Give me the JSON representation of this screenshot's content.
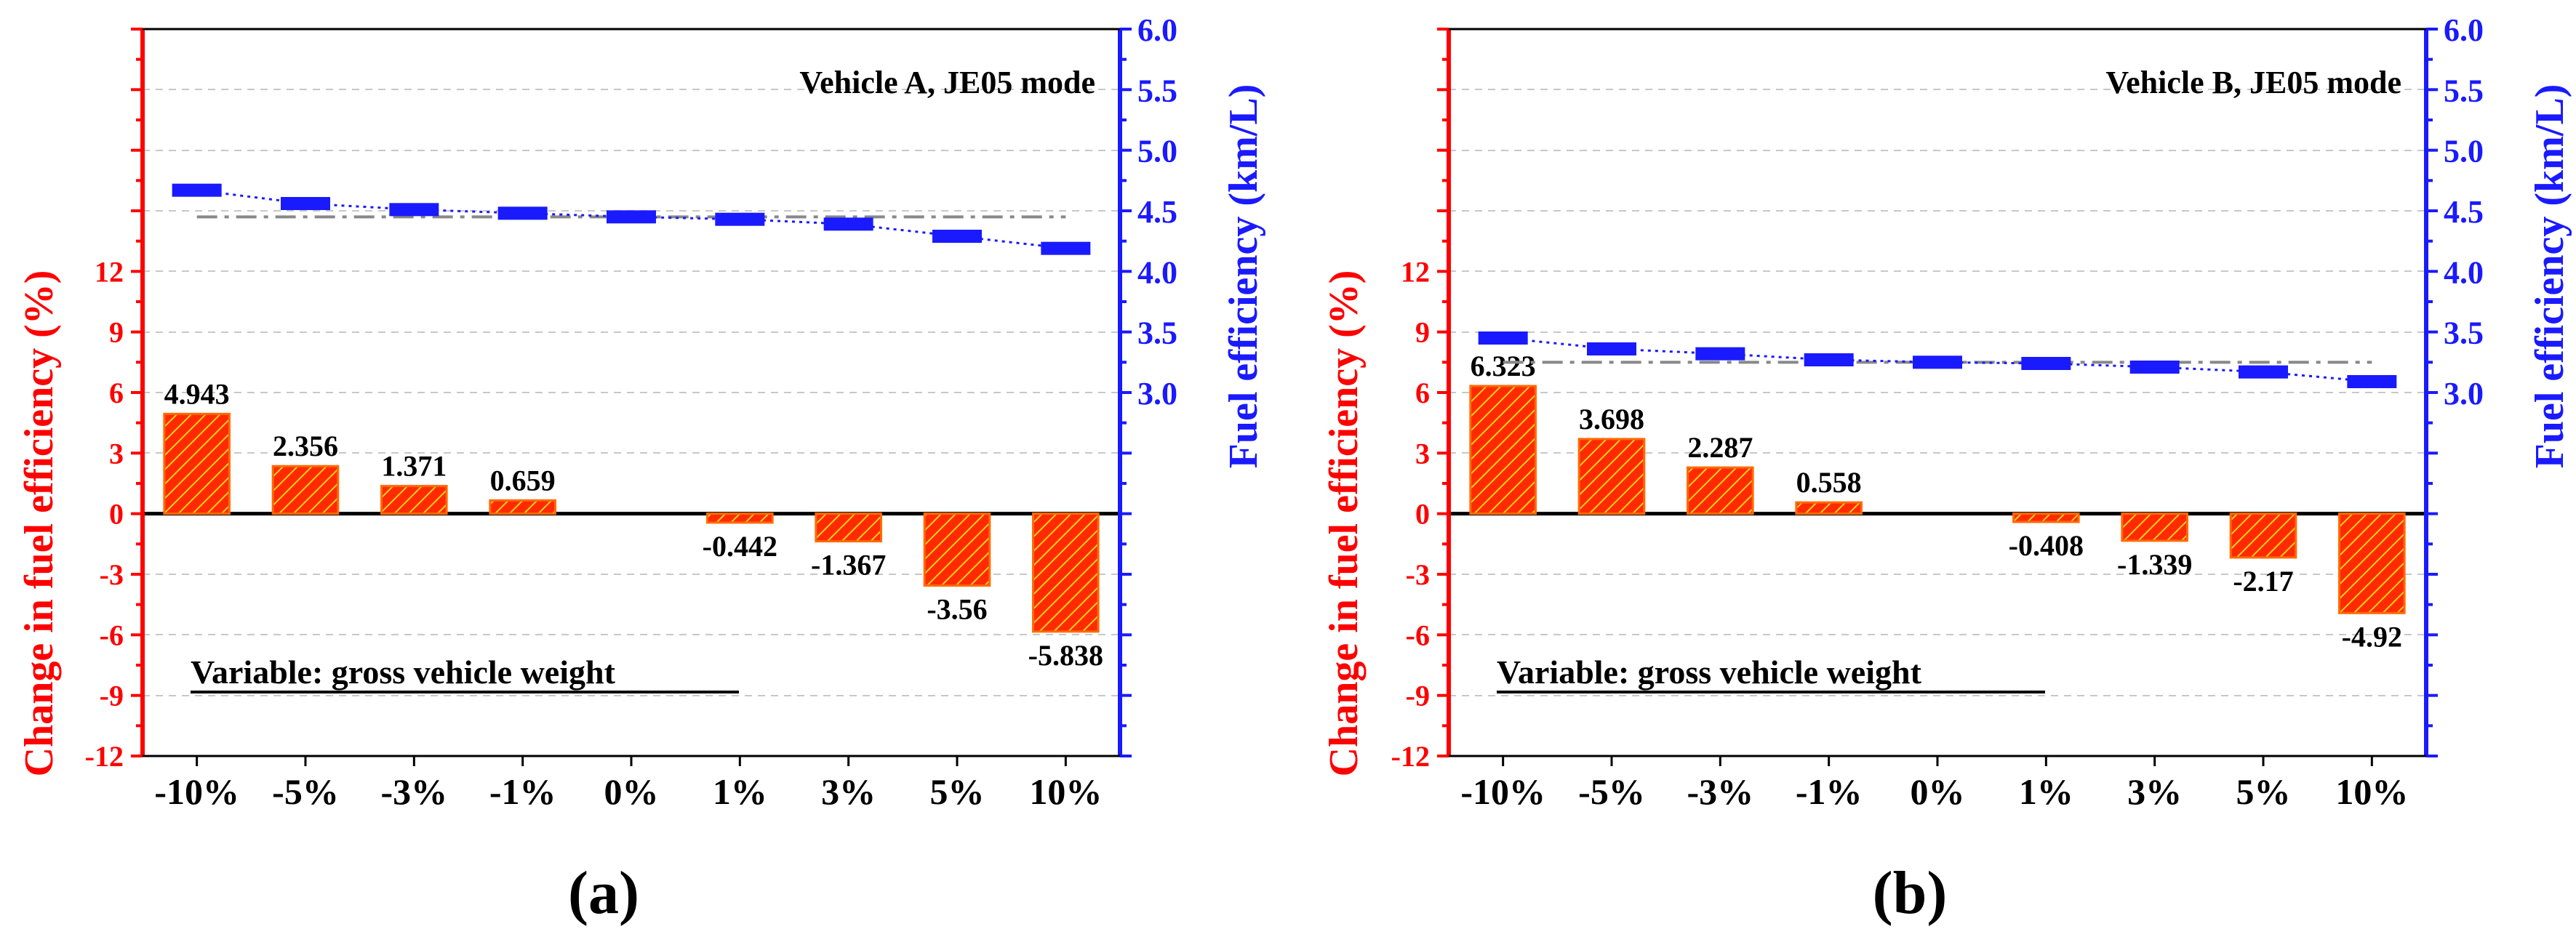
{
  "colors": {
    "left_axis": "#ff0000",
    "right_axis": "#1a1aff",
    "bar_fill": "#ff2a00",
    "bar_hatch": "#ffd21a",
    "fe_marker": "#1a1aff",
    "baseline": "#888888",
    "grid": "#c8c8c8"
  },
  "chart_data": [
    {
      "type": "bar",
      "panel_label": "(a)",
      "title": "Vehicle A, JE05 mode",
      "variable_label": "Variable: gross vehicle weight",
      "categories": [
        "-10%",
        "-5%",
        "-3%",
        "-1%",
        "0%",
        "1%",
        "3%",
        "5%",
        "10%"
      ],
      "series": [
        {
          "name": "Change in fuel efficiency (%)",
          "axis": "left",
          "values": [
            4.943,
            2.356,
            1.371,
            0.659,
            0,
            -0.442,
            -1.367,
            -3.56,
            -5.838
          ],
          "labels": [
            "4.943",
            "2.356",
            "1.371",
            "0.659",
            "",
            "-0.442",
            "-1.367",
            "-3.56",
            "-5.838"
          ]
        },
        {
          "name": "Fuel efficiency (km/L)",
          "axis": "right",
          "values": [
            4.67,
            4.56,
            4.51,
            4.48,
            4.45,
            4.43,
            4.39,
            4.29,
            4.19
          ]
        }
      ],
      "baseline_value": 4.45,
      "ylabel_left": "Change in fuel efficiency (%)",
      "ylabel_right": "Fuel efficiency (km/L)",
      "ylim_left": [
        -12,
        24
      ],
      "yticks_left": [
        "-12",
        "-9",
        "-6",
        "-3",
        "0",
        "3",
        "6",
        "9",
        "12"
      ],
      "yticks_left_values": [
        -12,
        -9,
        -6,
        -3,
        0,
        3,
        6,
        9,
        12
      ],
      "ylim_right": [
        0,
        6
      ],
      "yticks_right": [
        "3.0",
        "3.5",
        "4.0",
        "4.5",
        "5.0",
        "5.5",
        "6.0"
      ],
      "yticks_right_values": [
        3.0,
        3.5,
        4.0,
        4.5,
        5.0,
        5.5,
        6.0
      ],
      "grid": true
    },
    {
      "type": "bar",
      "panel_label": "(b)",
      "title": "Vehicle B, JE05 mode",
      "variable_label": "Variable: gross vehicle weight",
      "categories": [
        "-10%",
        "-5%",
        "-3%",
        "-1%",
        "0%",
        "1%",
        "3%",
        "5%",
        "10%"
      ],
      "series": [
        {
          "name": "Change in fuel efficiency (%)",
          "axis": "left",
          "values": [
            6.323,
            3.698,
            2.287,
            0.558,
            0,
            -0.408,
            -1.339,
            -2.17,
            -4.92
          ],
          "labels": [
            "6.323",
            "3.698",
            "2.287",
            "0.558",
            "",
            "-0.408",
            "-1.339",
            "-2.17",
            "-4.92"
          ]
        },
        {
          "name": "Fuel efficiency (km/L)",
          "axis": "right",
          "values": [
            3.45,
            3.36,
            3.32,
            3.27,
            3.25,
            3.24,
            3.21,
            3.17,
            3.09
          ]
        }
      ],
      "baseline_value": 3.25,
      "ylabel_left": "Change in fuel efficiency (%)",
      "ylabel_right": "Fuel efficiency (km/L)",
      "ylim_left": [
        -12,
        24
      ],
      "yticks_left": [
        "-12",
        "-9",
        "-6",
        "-3",
        "0",
        "3",
        "6",
        "9",
        "12"
      ],
      "yticks_left_values": [
        -12,
        -9,
        -6,
        -3,
        0,
        3,
        6,
        9,
        12
      ],
      "ylim_right": [
        0,
        6
      ],
      "yticks_right": [
        "3.0",
        "3.5",
        "4.0",
        "4.5",
        "5.0",
        "5.5",
        "6.0"
      ],
      "yticks_right_values": [
        3.0,
        3.5,
        4.0,
        4.5,
        5.0,
        5.5,
        6.0
      ],
      "grid": true
    }
  ]
}
